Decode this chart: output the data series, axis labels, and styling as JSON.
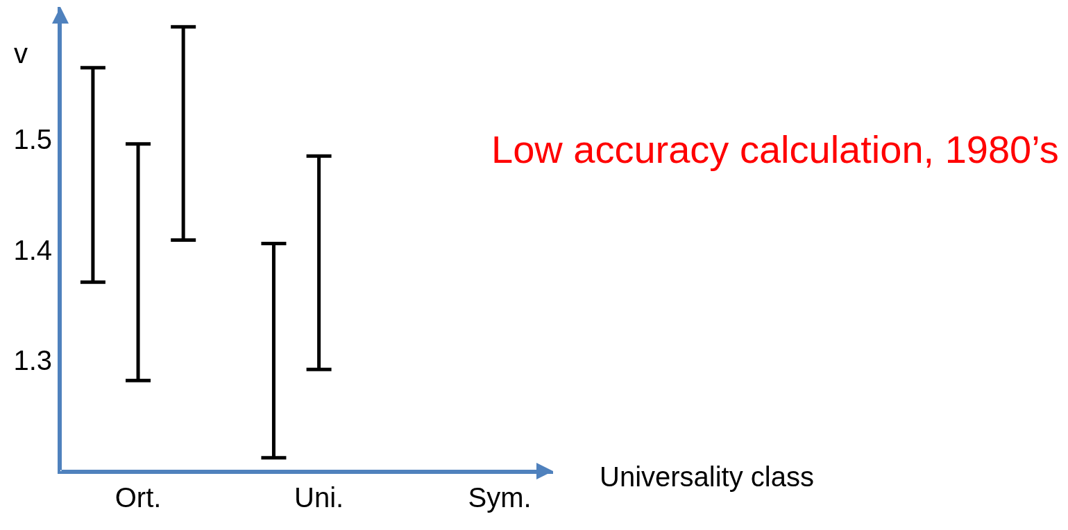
{
  "chart_data": {
    "type": "bar",
    "ylabel": "v",
    "xlabel": "Universality class",
    "annotations": [
      "Low accuracy calculation, 1980’s"
    ],
    "categories": [
      null,
      "Ort.",
      null,
      null,
      null,
      "Uni.",
      null,
      null,
      null,
      "Sym."
    ],
    "series": [
      {
        "color": "#000000",
        "base": [
          1.371,
          1.282,
          1.409,
          null,
          1.212,
          1.292,
          null,
          null,
          null,
          null
        ],
        "values": [
          0.194,
          0.214,
          0.193,
          null,
          0.194,
          0.193,
          null,
          null,
          null,
          null
        ]
      }
    ],
    "ylim": [
      1.2,
      1.62
    ],
    "yticks": [
      1.3,
      1.4,
      1.5
    ]
  }
}
